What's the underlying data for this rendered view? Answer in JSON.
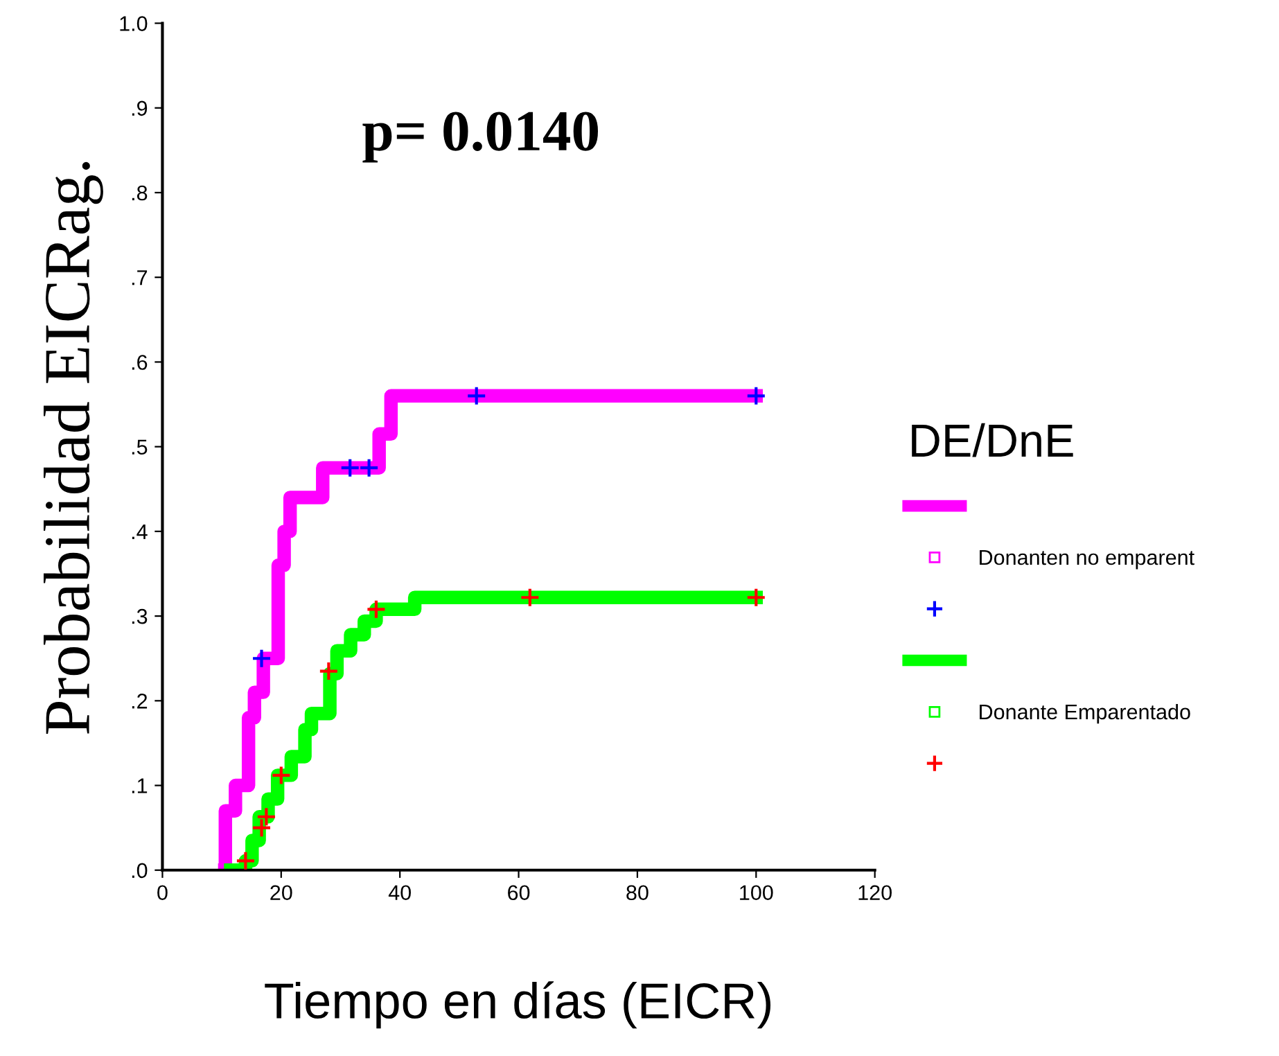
{
  "chart_data": {
    "type": "step",
    "xlabel": "Tiempo en días (EICR)",
    "ylabel": "Probabilidad EICRag.",
    "legend_title": "DE/DnE",
    "annotations": [
      "p= 0.0140"
    ],
    "xlim": [
      0,
      120
    ],
    "xticks": [
      0,
      20,
      40,
      60,
      80,
      100,
      120
    ],
    "ylim": [
      0,
      1.0
    ],
    "yticks": [
      {
        "value": 0,
        "label": ".0"
      },
      {
        "value": 0.1,
        "label": ".1"
      },
      {
        "value": 0.2,
        "label": ".2"
      },
      {
        "value": 0.3,
        "label": ".3"
      },
      {
        "value": 0.4,
        "label": ".4"
      },
      {
        "value": 0.5,
        "label": ".5"
      },
      {
        "value": 0.6,
        "label": ".6"
      },
      {
        "value": 0.7,
        "label": ".7"
      },
      {
        "value": 0.8,
        "label": ".8"
      },
      {
        "value": 0.9,
        "label": ".9"
      },
      {
        "value": 1.0,
        "label": "1.0"
      }
    ],
    "grid": false,
    "legend": "right",
    "series": [
      {
        "name": "Donanten no emparent",
        "color": "#ff00ff",
        "x": [
          10.5,
          10.6,
          12.3,
          14.5,
          15.5,
          17,
          19.5,
          20.5,
          21.5,
          27,
          36.5,
          38.5,
          100
        ],
        "values": [
          0,
          0.07,
          0.1,
          0.18,
          0.21,
          0.25,
          0.36,
          0.4,
          0.44,
          0.475,
          0.515,
          0.56,
          0.56
        ]
      },
      {
        "type": "scatter",
        "marker": "cross",
        "color": "#0000ff",
        "x": [
          16.7,
          31.6,
          34.8,
          52.9,
          100
        ],
        "values": [
          0.25,
          0.475,
          0.475,
          0.56,
          0.56
        ]
      },
      {
        "name": "Donante Emparentado",
        "color": "#00ff00",
        "x": [
          11.5,
          14.0,
          15.1,
          16.3,
          17.8,
          19.4,
          21.7,
          24.0,
          25.1,
          28.2,
          29.4,
          31.7,
          34.0,
          36.0,
          42.5,
          100
        ],
        "values": [
          0,
          0.011,
          0.035,
          0.063,
          0.084,
          0.112,
          0.134,
          0.166,
          0.185,
          0.232,
          0.259,
          0.278,
          0.294,
          0.308,
          0.322,
          0.322
        ]
      },
      {
        "type": "scatter",
        "marker": "cross",
        "color": "#ff0000",
        "x": [
          14.0,
          16.7,
          17.5,
          20.0,
          28.0,
          36.0,
          61.9,
          100
        ],
        "values": [
          0.011,
          0.05,
          0.063,
          0.112,
          0.235,
          0.308,
          0.322,
          0.322
        ]
      }
    ]
  }
}
